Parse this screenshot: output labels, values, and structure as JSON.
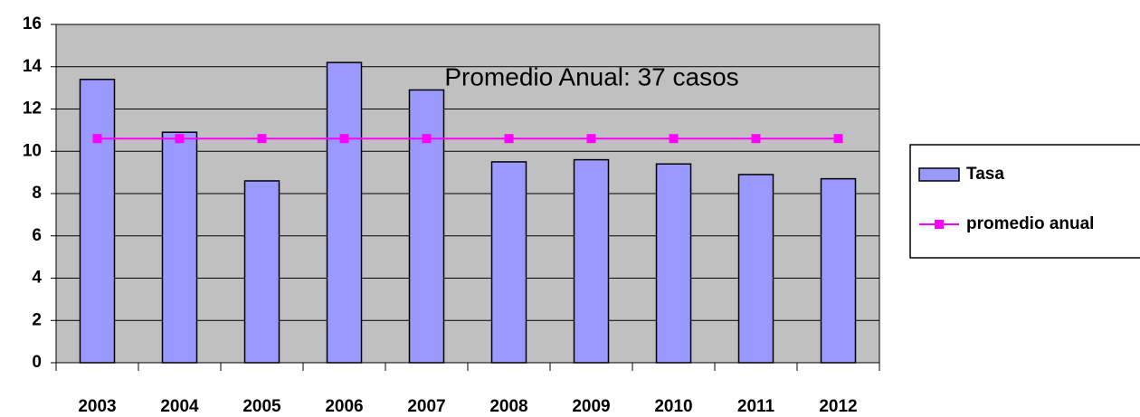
{
  "chart_data": {
    "type": "bar",
    "annotation": "Promedio Anual: 37 casos",
    "categories": [
      "2003",
      "2004",
      "2005",
      "2006",
      "2007",
      "2008",
      "2009",
      "2010",
      "2011",
      "2012"
    ],
    "series": [
      {
        "name": "Tasa",
        "type": "bar",
        "color": "#9999ff",
        "values": [
          13.4,
          10.9,
          8.6,
          14.2,
          12.9,
          9.5,
          9.6,
          9.4,
          8.9,
          8.7
        ]
      },
      {
        "name": "promedio anual",
        "type": "line",
        "color": "#ff00ff",
        "values": [
          10.6,
          10.6,
          10.6,
          10.6,
          10.6,
          10.6,
          10.6,
          10.6,
          10.6,
          10.6
        ]
      }
    ],
    "ylim": [
      0,
      16
    ],
    "yticks": [
      0,
      2,
      4,
      6,
      8,
      10,
      12,
      14,
      16
    ],
    "grid": true,
    "legend": "right",
    "plot_background": "#c0c0c0"
  }
}
